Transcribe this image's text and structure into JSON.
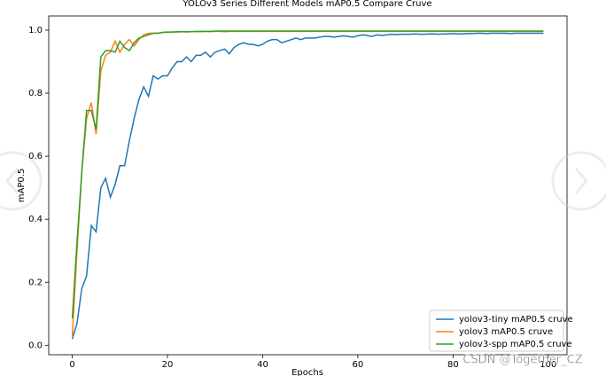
{
  "chart_data": {
    "type": "line",
    "title": "YOLOv3 Series Different Models mAP0.5 Compare Cruve",
    "x_label": "Epochs",
    "y_label": "mAP0.5",
    "watermark": "CSDN @Together_CZ",
    "legend": "lower right",
    "x": [
      0,
      1,
      2,
      3,
      4,
      5,
      6,
      7,
      8,
      9,
      10,
      11,
      12,
      13,
      14,
      15,
      16,
      17,
      18,
      19,
      20,
      21,
      22,
      23,
      24,
      25,
      26,
      27,
      28,
      29,
      30,
      31,
      32,
      33,
      34,
      35,
      36,
      37,
      38,
      39,
      40,
      41,
      42,
      43,
      44,
      45,
      46,
      47,
      48,
      49,
      50,
      51,
      52,
      53,
      54,
      55,
      56,
      57,
      58,
      59,
      60,
      61,
      62,
      63,
      64,
      65,
      66,
      67,
      68,
      69,
      70,
      71,
      72,
      73,
      74,
      75,
      76,
      77,
      78,
      79,
      80,
      81,
      82,
      83,
      84,
      85,
      86,
      87,
      88,
      89,
      90,
      91,
      92,
      93,
      94,
      95,
      96,
      97,
      98,
      99
    ],
    "xlim": [
      -4.95,
      103.95
    ],
    "ylim": [
      -0.03,
      1.045
    ],
    "xticks": [
      0,
      20,
      40,
      60,
      80,
      100
    ],
    "yticks": [
      {
        "value": 0,
        "label": "0.0"
      },
      0.2,
      0.4,
      0.6,
      0.8,
      {
        "value": 1,
        "label": "1.0"
      }
    ],
    "series": [
      {
        "name": "yolov3-tiny mAP0.5 cruve",
        "color": "#1f77b4",
        "values": [
          0.02,
          0.07,
          0.18,
          0.22,
          0.38,
          0.36,
          0.5,
          0.53,
          0.47,
          0.51,
          0.57,
          0.57,
          0.65,
          0.72,
          0.78,
          0.82,
          0.79,
          0.855,
          0.845,
          0.855,
          0.855,
          0.88,
          0.9,
          0.9,
          0.915,
          0.9,
          0.92,
          0.92,
          0.93,
          0.915,
          0.93,
          0.935,
          0.94,
          0.925,
          0.945,
          0.955,
          0.96,
          0.955,
          0.955,
          0.95,
          0.955,
          0.965,
          0.97,
          0.97,
          0.96,
          0.965,
          0.97,
          0.975,
          0.97,
          0.975,
          0.975,
          0.975,
          0.978,
          0.98,
          0.98,
          0.978,
          0.98,
          0.982,
          0.98,
          0.978,
          0.982,
          0.985,
          0.983,
          0.98,
          0.985,
          0.983,
          0.985,
          0.987,
          0.986,
          0.987,
          0.987,
          0.987,
          0.988,
          0.987,
          0.987,
          0.988,
          0.988,
          0.987,
          0.988,
          0.988,
          0.989,
          0.988,
          0.988,
          0.989,
          0.989,
          0.99,
          0.99,
          0.989,
          0.99,
          0.99,
          0.99,
          0.99,
          0.989,
          0.99,
          0.99,
          0.99,
          0.99,
          0.99,
          0.99,
          0.99
        ]
      },
      {
        "name": "yolov3 mAP0.5 cruve",
        "color": "#ff7f0e",
        "values": [
          0.03,
          0.3,
          0.55,
          0.72,
          0.77,
          0.67,
          0.87,
          0.92,
          0.93,
          0.965,
          0.93,
          0.955,
          0.97,
          0.95,
          0.97,
          0.985,
          0.99,
          0.99,
          0.99,
          0.993,
          0.993,
          0.994,
          0.994,
          0.995,
          0.994,
          0.995,
          0.995,
          0.995,
          0.996,
          0.995,
          0.996,
          0.996,
          0.995,
          0.996,
          0.996,
          0.996,
          0.996,
          0.996,
          0.996,
          0.996,
          0.996,
          0.996,
          0.996,
          0.996,
          0.996,
          0.996,
          0.996,
          0.996,
          0.996,
          0.996,
          0.996,
          0.996,
          0.996,
          0.996,
          0.996,
          0.996,
          0.996,
          0.996,
          0.996,
          0.996,
          0.996,
          0.996,
          0.996,
          0.996,
          0.996,
          0.996,
          0.996,
          0.996,
          0.996,
          0.996,
          0.996,
          0.996,
          0.996,
          0.996,
          0.996,
          0.996,
          0.996,
          0.996,
          0.996,
          0.996,
          0.996,
          0.996,
          0.996,
          0.996,
          0.996,
          0.996,
          0.996,
          0.996,
          0.996,
          0.996,
          0.996,
          0.996,
          0.996,
          0.996,
          0.996,
          0.996,
          0.996,
          0.996,
          0.996,
          0.996
        ]
      },
      {
        "name": "yolov3-spp mAP0.5 cruve",
        "color": "#2ca02c",
        "values": [
          0.085,
          0.33,
          0.55,
          0.745,
          0.745,
          0.685,
          0.915,
          0.935,
          0.935,
          0.93,
          0.965,
          0.945,
          0.935,
          0.96,
          0.975,
          0.98,
          0.985,
          0.99,
          0.99,
          0.993,
          0.994,
          0.994,
          0.995,
          0.995,
          0.995,
          0.995,
          0.996,
          0.996,
          0.996,
          0.996,
          0.997,
          0.997,
          0.997,
          0.997,
          0.997,
          0.997,
          0.997,
          0.997,
          0.997,
          0.997,
          0.997,
          0.997,
          0.997,
          0.997,
          0.997,
          0.997,
          0.997,
          0.997,
          0.997,
          0.997,
          0.997,
          0.997,
          0.997,
          0.997,
          0.997,
          0.997,
          0.997,
          0.997,
          0.997,
          0.997,
          0.997,
          0.997,
          0.997,
          0.997,
          0.997,
          0.997,
          0.997,
          0.997,
          0.997,
          0.997,
          0.997,
          0.997,
          0.997,
          0.997,
          0.997,
          0.997,
          0.997,
          0.997,
          0.997,
          0.997,
          0.997,
          0.997,
          0.997,
          0.997,
          0.997,
          0.997,
          0.997,
          0.997,
          0.997,
          0.997,
          0.997,
          0.997,
          0.997,
          0.997,
          0.997,
          0.997,
          0.997,
          0.997,
          0.997,
          0.997
        ]
      }
    ]
  }
}
